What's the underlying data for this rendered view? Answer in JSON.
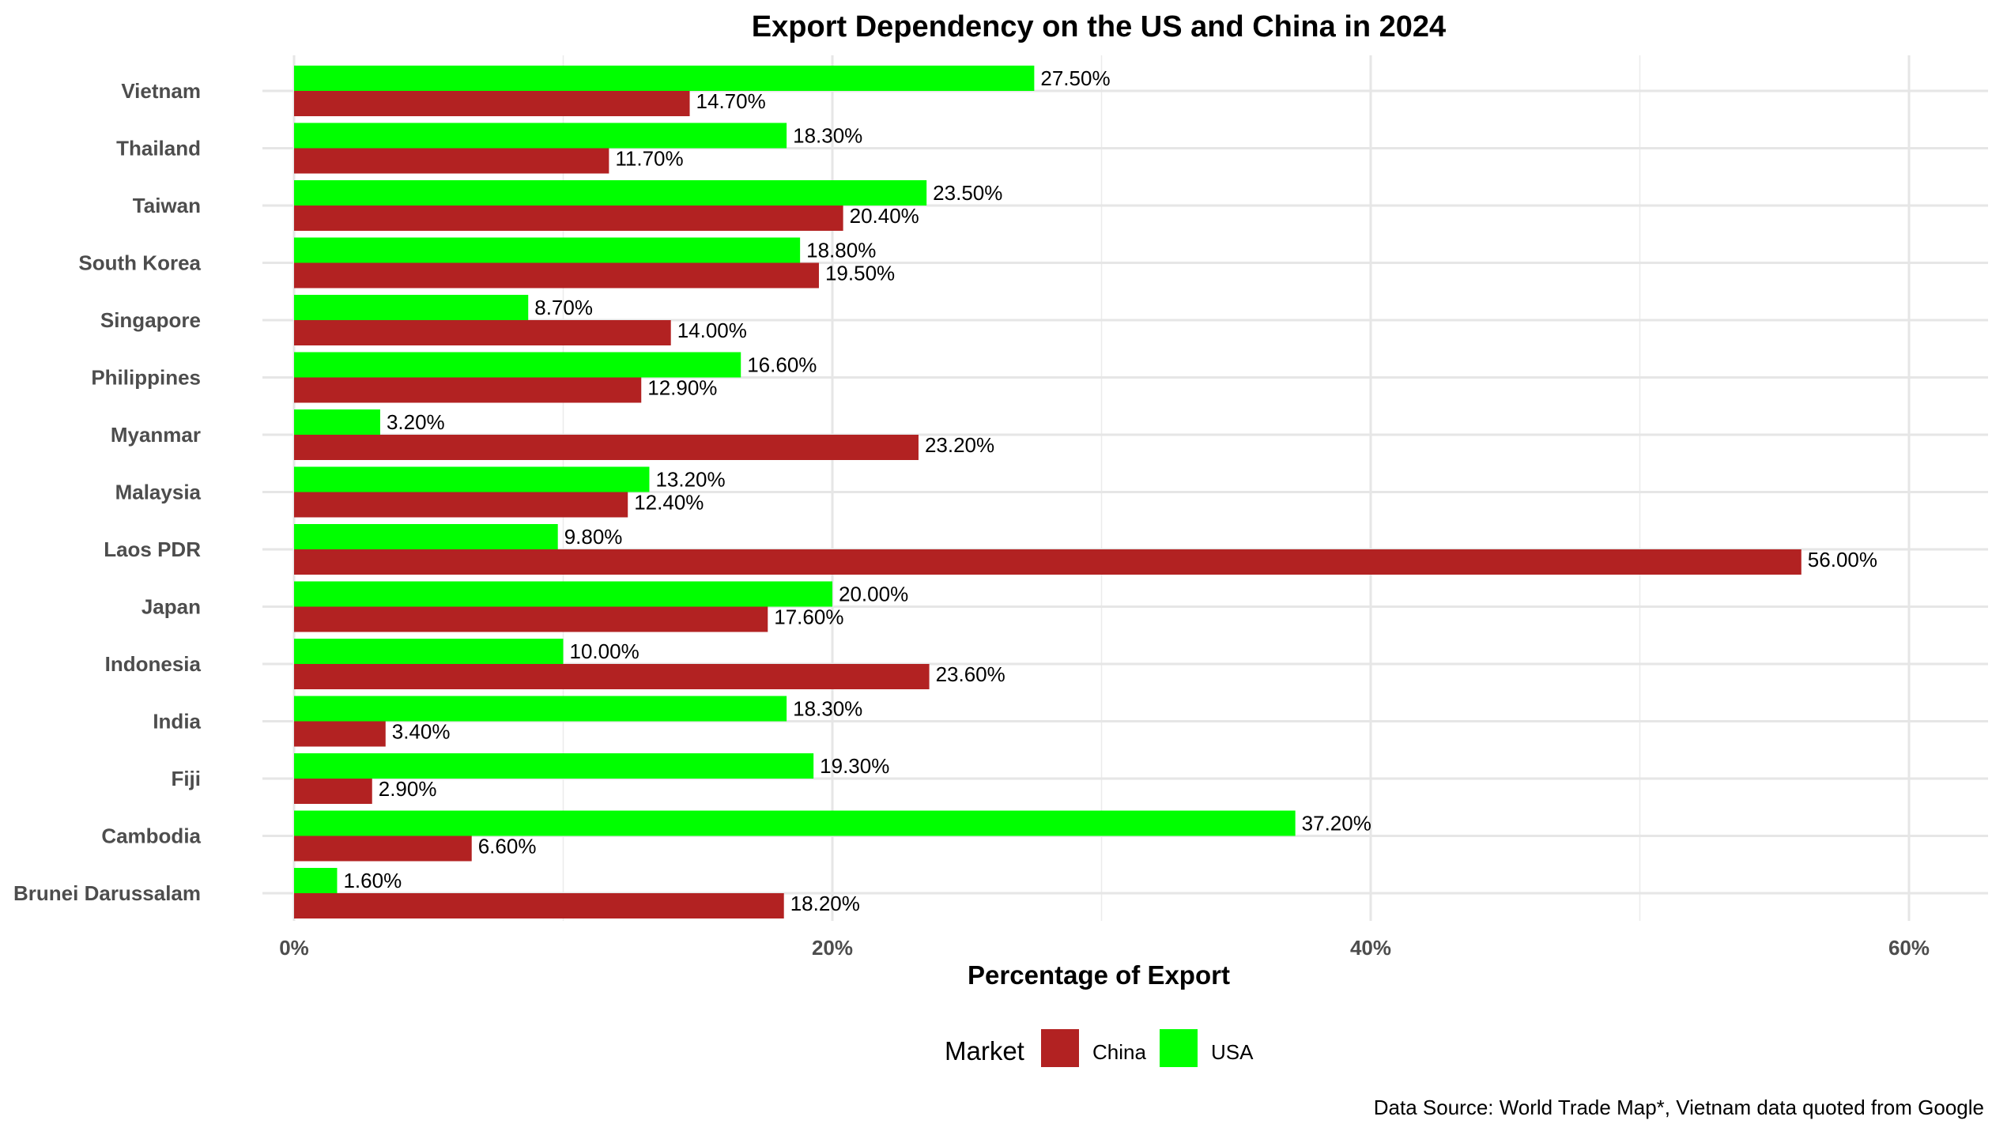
{
  "chart_data": {
    "type": "bar",
    "orientation": "horizontal",
    "title": "Export Dependency on the US and China in 2024",
    "xlabel": "Percentage of Export",
    "ylabel": "",
    "xlim": [
      0,
      60
    ],
    "x_ticks": [
      0,
      20,
      40,
      60
    ],
    "x_tick_labels": [
      "0%",
      "20%",
      "40%",
      "60%"
    ],
    "grid": true,
    "legend_position": "bottom",
    "legend": {
      "title": "Market",
      "items": [
        {
          "name": "China",
          "color": "#B22222"
        },
        {
          "name": "USA",
          "color": "#00FF00"
        }
      ]
    },
    "categories": [
      "Vietnam",
      "Thailand",
      "Taiwan",
      "South Korea",
      "Singapore",
      "Philippines",
      "Myanmar",
      "Malaysia",
      "Laos PDR",
      "Japan",
      "Indonesia",
      "India",
      "Fiji",
      "Cambodia",
      "Brunei Darussalam"
    ],
    "series": [
      {
        "name": "USA",
        "color": "#00FF00",
        "values": [
          27.5,
          18.3,
          23.5,
          18.8,
          8.7,
          16.6,
          3.2,
          13.2,
          9.8,
          20.0,
          10.0,
          18.3,
          19.3,
          37.2,
          1.6
        ],
        "labels": [
          "27.50%",
          "18.30%",
          "23.50%",
          "18.80%",
          "8.70%",
          "16.60%",
          "3.20%",
          "13.20%",
          "9.80%",
          "20.00%",
          "10.00%",
          "18.30%",
          "19.30%",
          "37.20%",
          "1.60%"
        ]
      },
      {
        "name": "China",
        "color": "#B22222",
        "values": [
          14.7,
          11.7,
          20.4,
          19.5,
          14.0,
          12.9,
          23.2,
          12.4,
          56.0,
          17.6,
          23.6,
          3.4,
          2.9,
          6.6,
          18.2
        ],
        "labels": [
          "14.70%",
          "11.70%",
          "20.40%",
          "19.50%",
          "14.00%",
          "12.90%",
          "23.20%",
          "12.40%",
          "56.00%",
          "17.60%",
          "23.60%",
          "3.40%",
          "2.90%",
          "6.60%",
          "18.20%"
        ]
      }
    ],
    "caption": "Data Source: World Trade Map*, Vietnam data quoted from Google"
  }
}
